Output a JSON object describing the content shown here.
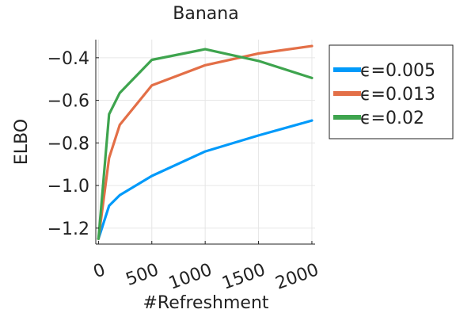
{
  "chart_data": {
    "type": "line",
    "title": "Banana",
    "xlabel": "#Refreshment",
    "ylabel": "ELBO",
    "xlim": [
      -25,
      2030
    ],
    "ylim": [
      -1.275,
      -0.315
    ],
    "xticks": [
      0,
      500,
      1000,
      1500,
      2000
    ],
    "xtick_labels": [
      "0",
      "500",
      "1000",
      "1500",
      "2000"
    ],
    "yticks": [
      -1.2,
      -1.0,
      -0.8,
      -0.6,
      -0.4
    ],
    "ytick_labels": [
      "−1.2",
      "−1.0",
      "−0.8",
      "−0.6",
      "−0.4"
    ],
    "grid": true,
    "legend_position": "outside-right",
    "series": [
      {
        "name": "ϵ=0.005",
        "color": "#009AFA",
        "x": [
          0,
          100,
          200,
          500,
          1000,
          1500,
          2000
        ],
        "y": [
          -1.25,
          -1.095,
          -1.045,
          -0.955,
          -0.84,
          -0.765,
          -0.695
        ]
      },
      {
        "name": "ϵ=0.013",
        "color": "#E36F47",
        "x": [
          0,
          100,
          200,
          500,
          1000,
          1500,
          2000
        ],
        "y": [
          -1.25,
          -0.87,
          -0.715,
          -0.53,
          -0.435,
          -0.38,
          -0.345
        ]
      },
      {
        "name": "ϵ=0.02",
        "color": "#3EA44E",
        "x": [
          0,
          100,
          200,
          500,
          1000,
          1500,
          2000
        ],
        "y": [
          -1.25,
          -0.665,
          -0.565,
          -0.41,
          -0.36,
          -0.415,
          -0.495
        ]
      }
    ]
  }
}
